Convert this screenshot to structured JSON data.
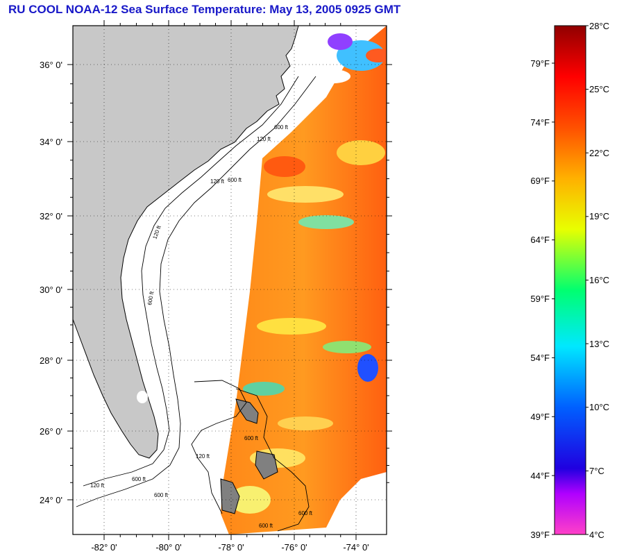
{
  "title": "RU COOL  NOAA-12  Sea Surface Temperature:  May 13, 2005 0925 GMT",
  "map": {
    "lat_labels": [
      "36° 0'",
      "34° 0'",
      "32° 0'",
      "30° 0'",
      "28° 0'",
      "26° 0'",
      "24° 0'"
    ],
    "lon_labels": [
      "-82° 0'",
      "-80° 0'",
      "-78° 0'",
      "-76° 0'",
      "-74° 0'"
    ],
    "contour_labels": [
      "120 ft",
      "600 ft",
      "120 ft",
      "600 ft",
      "120 ft",
      "600 ft",
      "120 ft",
      "600 ft",
      "120 ft",
      "600 ft",
      "600 ft",
      "600 ft",
      "600 ft"
    ],
    "lat_range": [
      23,
      37
    ],
    "lon_range": [
      -83.2,
      -73.2
    ]
  },
  "colorbar": {
    "celsius_labels": [
      "28°C",
      "25°C",
      "22°C",
      "19°C",
      "16°C",
      "13°C",
      "10°C",
      "7°C",
      "4°C"
    ],
    "fahrenheit_labels": [
      "79°F",
      "74°F",
      "69°F",
      "64°F",
      "59°F",
      "54°F",
      "49°F",
      "44°F",
      "39°F"
    ]
  },
  "colors": {
    "title": "#1818c8",
    "land": "#c8c8c8",
    "sea_dominant": "#ff7a10",
    "frame": "#000000"
  }
}
